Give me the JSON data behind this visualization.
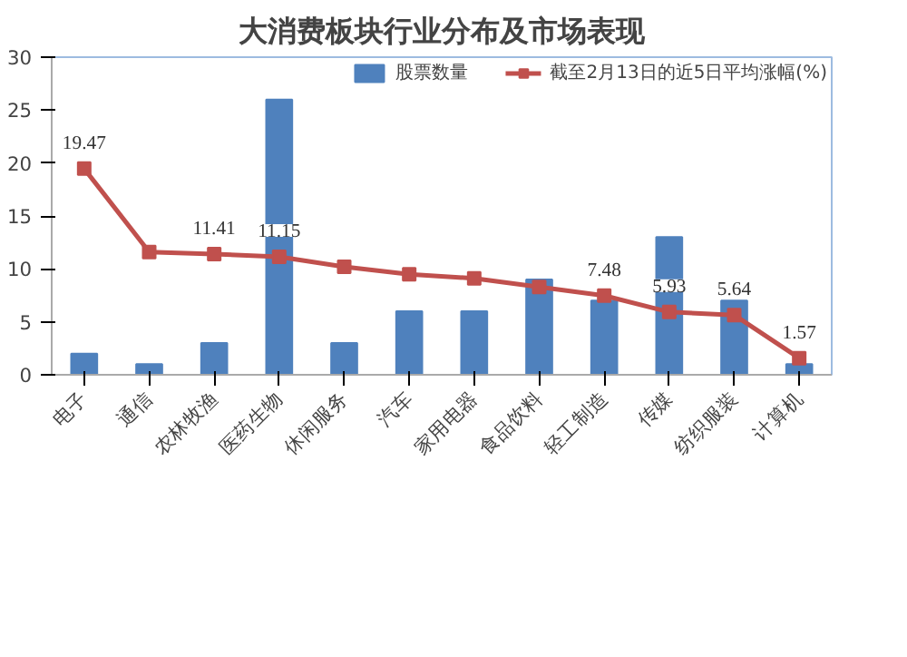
{
  "chart_data": {
    "type": "bar",
    "title": "大消费板块行业分布及市场表现",
    "categories": [
      "电子",
      "通信",
      "农林牧渔",
      "医药生物",
      "休闲服务",
      "汽车",
      "家用电器",
      "食品饮料",
      "轻工制造",
      "传媒",
      "纺织服装",
      "计算机"
    ],
    "series": [
      {
        "name": "股票数量",
        "color": "#4f81bd",
        "values": [
          2,
          1,
          3,
          26,
          3,
          6,
          6,
          9,
          7,
          13,
          7,
          1
        ]
      },
      {
        "name": "截至2月13日的近5日平均涨幅(%)",
        "type": "line",
        "color": "#c0504d",
        "marker": "square",
        "values": [
          19.47,
          11.6,
          11.41,
          11.15,
          10.2,
          9.5,
          9.1,
          8.3,
          7.48,
          5.93,
          5.64,
          1.57
        ],
        "value_labels": [
          "19.47",
          null,
          "11.41",
          "11.15",
          null,
          null,
          null,
          null,
          "7.48",
          "5.93",
          "5.64",
          "1.57"
        ]
      }
    ],
    "ylim": [
      0,
      30
    ],
    "yticks": [
      0,
      5,
      10,
      15,
      20,
      25,
      30
    ],
    "grid": false,
    "legend": "top right"
  }
}
